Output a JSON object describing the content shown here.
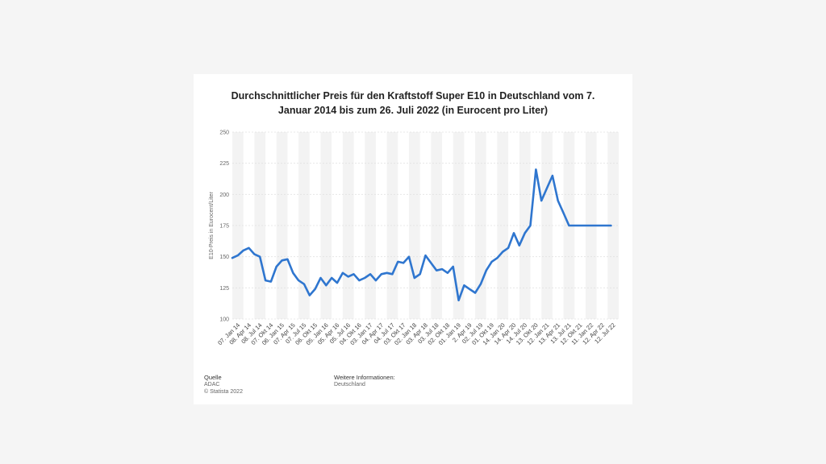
{
  "chart_data": {
    "type": "line",
    "title": "Durchschnittlicher Preis für den Kraftstoff Super E10 in Deutschland vom 7. Januar 2014 bis zum 26. Juli 2022 (in Eurocent pro Liter)",
    "xlabel": "",
    "ylabel": "E10-Preis in Eurocent/Liter",
    "ylim": [
      100,
      250
    ],
    "yticks": [
      100,
      125,
      150,
      175,
      200,
      225,
      250
    ],
    "grid": true,
    "x_tick_labels": [
      "07. Jan 14",
      "08. Apr 14",
      "08. Jul 14",
      "07. Okt 14",
      "06. Jan 15",
      "07. Apr 15",
      "07. Jul 15",
      "06. Okt 15",
      "05. Jan 16",
      "05. Apr 16",
      "05. Jul 16",
      "04. Okt 16",
      "03. Jan 17",
      "04. Apr 17",
      "04. Jul 17",
      "03. Okt 17",
      "02. Jan 18",
      "03. Apr 18",
      "03. Jul 18",
      "02. Okt 18",
      "01. Jan 19",
      "2. Apr 19",
      "02. Jul 19",
      "01. Okt 19",
      "14. Jan 20",
      "14. Apr 20",
      "14. Jul 20",
      "13. Okt 20",
      "12. Jan 21",
      "13. Apr 21",
      "13. Jul 21",
      "12. Okt 21",
      "11. Jan 22",
      "12. Apr 22",
      "12. Jul 22"
    ],
    "series": [
      {
        "color": "#2f76cf",
        "x": [
          0,
          0.5,
          1,
          1.5,
          2,
          2.5,
          3,
          3.5,
          4,
          4.5,
          5,
          5.5,
          6,
          6.5,
          7,
          7.5,
          8,
          8.5,
          9,
          9.5,
          10,
          10.5,
          11,
          11.5,
          12,
          12.5,
          13,
          13.5,
          14,
          14.5,
          15,
          15.5,
          16,
          16.5,
          17,
          17.5,
          18,
          18.5,
          19,
          19.5,
          20,
          20.5,
          21,
          21.5,
          22,
          22.5,
          23,
          23.5,
          24,
          24.5,
          25,
          25.5,
          26,
          26.5,
          27,
          27.5,
          28,
          28.5,
          29,
          29.5,
          30,
          30.5,
          31,
          31.5,
          32,
          32.2,
          32.4,
          32.7,
          33,
          33.2,
          33.5,
          33.7,
          34,
          34.3
        ],
        "y": [
          149,
          151,
          155,
          157,
          152,
          150,
          131,
          130,
          142,
          147,
          148,
          137,
          131,
          128,
          119,
          124,
          133,
          127,
          133,
          129,
          137,
          134,
          136,
          131,
          133,
          136,
          131,
          136,
          137,
          136,
          146,
          145,
          150,
          133,
          136,
          151,
          145,
          139,
          140,
          137,
          142,
          115,
          127,
          124,
          121,
          128,
          139,
          146,
          149,
          154,
          157,
          169,
          159,
          169,
          175,
          220,
          195,
          205,
          215,
          195,
          185,
          175,
          175,
          175,
          175,
          175,
          175,
          175,
          175,
          175,
          175,
          175,
          175,
          175
        ]
      }
    ]
  },
  "source": {
    "label": "Quelle",
    "lines": [
      "ADAC",
      "© Statista 2022"
    ]
  },
  "info": {
    "label": "Weitere Informationen:",
    "lines": [
      "Deutschland"
    ]
  }
}
